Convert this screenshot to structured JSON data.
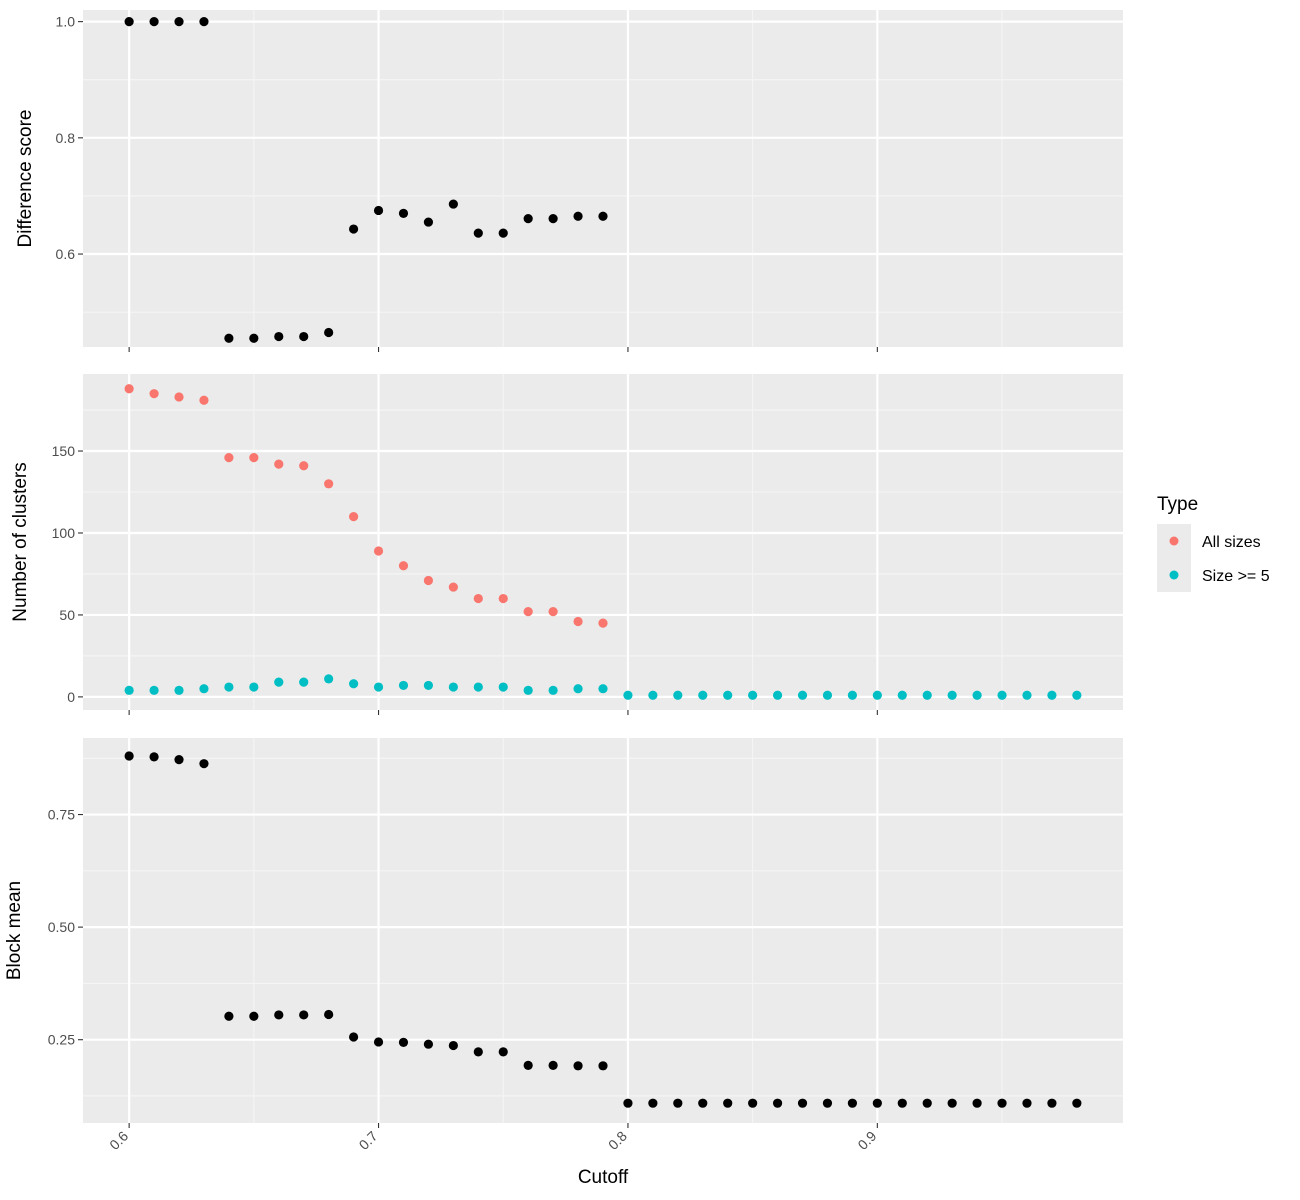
{
  "chart_data": [
    {
      "type": "scatter",
      "ylabel": "Difference score",
      "ylim": [
        0.44,
        1.02
      ],
      "y_ticks": [
        0.6,
        0.8,
        1.0
      ],
      "y_tick_labels": [
        "0.6",
        "0.8",
        "1.0"
      ],
      "xlim": [
        0.5815,
        0.9985
      ],
      "x_ticks": [
        0.6,
        0.7,
        0.8,
        0.9
      ],
      "grid": true,
      "series": [
        {
          "color": "#000000",
          "x": [
            0.6,
            0.61,
            0.62,
            0.63,
            0.64,
            0.65,
            0.66,
            0.67,
            0.68,
            0.69,
            0.7,
            0.71,
            0.72,
            0.73,
            0.74,
            0.75,
            0.76,
            0.77,
            0.78,
            0.79
          ],
          "y": [
            1.0,
            1.0,
            1.0,
            1.0,
            0.455,
            0.455,
            0.458,
            0.458,
            0.465,
            0.643,
            0.675,
            0.67,
            0.655,
            0.686,
            0.636,
            0.636,
            0.661,
            0.661,
            0.665,
            0.665
          ]
        }
      ]
    },
    {
      "type": "scatter",
      "ylabel": "Number of clusters",
      "ylim": [
        -8,
        197
      ],
      "y_ticks": [
        0,
        50,
        100,
        150
      ],
      "y_tick_labels": [
        "0",
        "50",
        "100",
        "150"
      ],
      "xlim": [
        0.5815,
        0.9985
      ],
      "x_ticks": [
        0.6,
        0.7,
        0.8,
        0.9
      ],
      "grid": true,
      "legend": {
        "title": "Type",
        "placement": "right",
        "entries": [
          {
            "label": "All sizes",
            "color": "#F8766D"
          },
          {
            "label": "Size >= 5",
            "color": "#00BFC4"
          }
        ]
      },
      "series": [
        {
          "name": "All sizes",
          "color": "#F8766D",
          "x": [
            0.6,
            0.61,
            0.62,
            0.63,
            0.64,
            0.65,
            0.66,
            0.67,
            0.68,
            0.69,
            0.7,
            0.71,
            0.72,
            0.73,
            0.74,
            0.75,
            0.76,
            0.77,
            0.78,
            0.79
          ],
          "y": [
            188,
            185,
            183,
            181,
            146,
            146,
            142,
            141,
            130,
            110,
            89,
            80,
            71,
            67,
            60,
            60,
            52,
            52,
            46,
            45
          ]
        },
        {
          "name": "Size >= 5",
          "color": "#00BFC4",
          "x": [
            0.6,
            0.61,
            0.62,
            0.63,
            0.64,
            0.65,
            0.66,
            0.67,
            0.68,
            0.69,
            0.7,
            0.71,
            0.72,
            0.73,
            0.74,
            0.75,
            0.76,
            0.77,
            0.78,
            0.79,
            0.8,
            0.81,
            0.82,
            0.83,
            0.84,
            0.85,
            0.86,
            0.87,
            0.88,
            0.89,
            0.9,
            0.91,
            0.92,
            0.93,
            0.94,
            0.95,
            0.96,
            0.97,
            0.98
          ],
          "y": [
            4,
            4,
            4,
            5,
            6,
            6,
            9,
            9,
            11,
            8,
            6,
            7,
            7,
            6,
            6,
            6,
            4,
            4,
            5,
            5,
            1,
            1,
            1,
            1,
            1,
            1,
            1,
            1,
            1,
            1,
            1,
            1,
            1,
            1,
            1,
            1,
            1,
            1,
            1
          ]
        }
      ]
    },
    {
      "type": "scatter",
      "xlabel": "Cutoff",
      "ylabel": "Block mean",
      "ylim": [
        0.065,
        0.92
      ],
      "y_ticks": [
        0.25,
        0.5,
        0.75
      ],
      "y_tick_labels": [
        "0.25",
        "0.50",
        "0.75"
      ],
      "xlim": [
        0.5815,
        0.9985
      ],
      "x_ticks": [
        0.6,
        0.7,
        0.8,
        0.9
      ],
      "x_tick_labels": [
        "0.6",
        "0.7",
        "0.8",
        "0.9"
      ],
      "grid": true,
      "series": [
        {
          "color": "#000000",
          "x": [
            0.6,
            0.61,
            0.62,
            0.63,
            0.64,
            0.65,
            0.66,
            0.67,
            0.68,
            0.69,
            0.7,
            0.71,
            0.72,
            0.73,
            0.74,
            0.75,
            0.76,
            0.77,
            0.78,
            0.79,
            0.8,
            0.81,
            0.82,
            0.83,
            0.84,
            0.85,
            0.86,
            0.87,
            0.88,
            0.89,
            0.9,
            0.91,
            0.92,
            0.93,
            0.94,
            0.95,
            0.96,
            0.97,
            0.98
          ],
          "y": [
            0.88,
            0.878,
            0.872,
            0.863,
            0.302,
            0.302,
            0.305,
            0.305,
            0.306,
            0.256,
            0.245,
            0.244,
            0.24,
            0.237,
            0.223,
            0.223,
            0.193,
            0.193,
            0.192,
            0.192,
            0.109,
            0.109,
            0.109,
            0.109,
            0.109,
            0.109,
            0.109,
            0.109,
            0.109,
            0.109,
            0.109,
            0.109,
            0.109,
            0.109,
            0.109,
            0.109,
            0.109,
            0.109,
            0.109
          ]
        }
      ]
    }
  ]
}
